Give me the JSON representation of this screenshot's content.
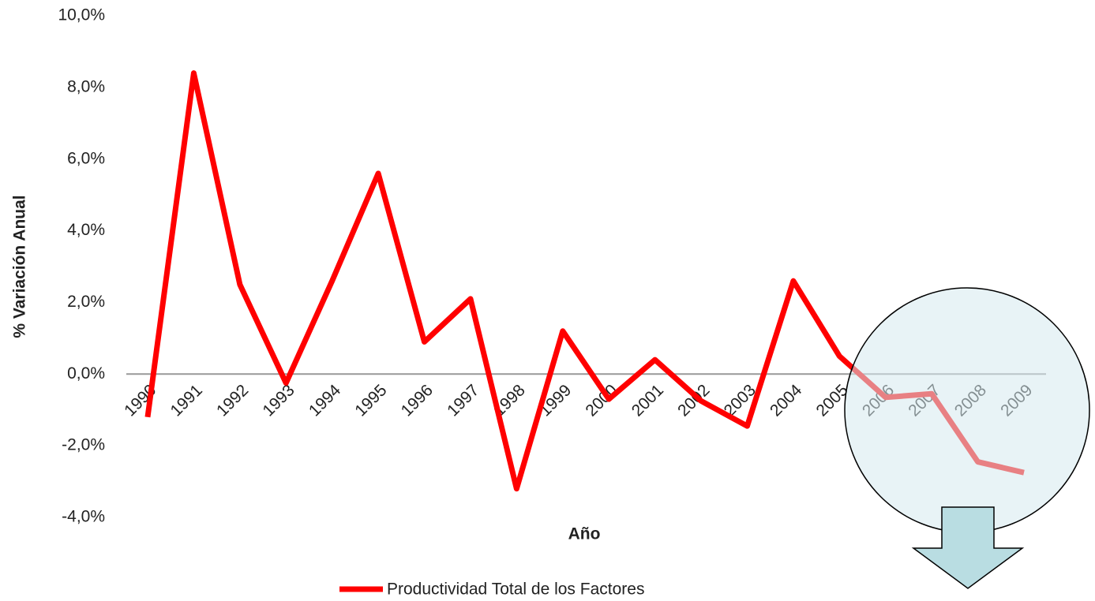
{
  "chart_data": {
    "type": "line",
    "x_label": "Año",
    "y_label": "% Variación Anual",
    "categories": [
      "1990",
      "1991",
      "1992",
      "1993",
      "1994",
      "1995",
      "1996",
      "1997",
      "1998",
      "1999",
      "2000",
      "2001",
      "2002",
      "2003",
      "2004",
      "2005",
      "2006",
      "2007",
      "2008",
      "2009"
    ],
    "series": [
      {
        "name": "Productividad Total de los Factores",
        "color": "#ff0000",
        "values": [
          -1.2,
          8.4,
          2.5,
          -0.25,
          2.6,
          5.6,
          0.9,
          2.1,
          -3.2,
          1.2,
          -0.7,
          0.4,
          -0.75,
          -1.45,
          2.6,
          0.5,
          -0.65,
          -0.55,
          -2.45,
          -2.75
        ]
      }
    ],
    "ylim": [
      -4,
      10
    ],
    "yticks": [
      {
        "value": -4,
        "label": "-4,0%"
      },
      {
        "value": -2,
        "label": "-2,0%"
      },
      {
        "value": 0,
        "label": "0,0%"
      },
      {
        "value": 2,
        "label": "2,0%"
      },
      {
        "value": 4,
        "label": "4,0%"
      },
      {
        "value": 6,
        "label": "6,0%"
      },
      {
        "value": 8,
        "label": "8,0%"
      },
      {
        "value": 10,
        "label": "10,0%"
      }
    ],
    "grid": false,
    "legend": "bottom"
  }
}
